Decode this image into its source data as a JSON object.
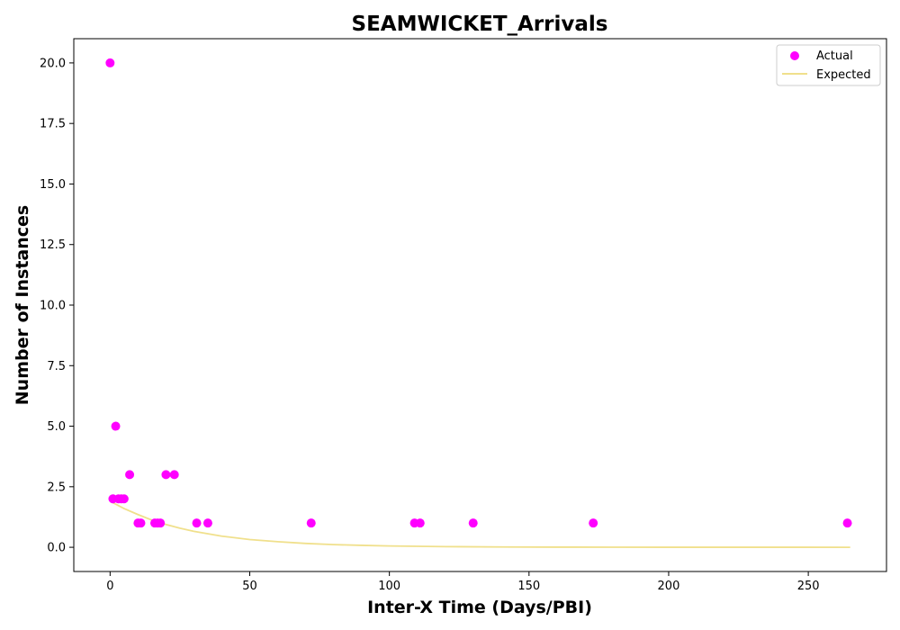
{
  "chart_data": {
    "type": "scatter",
    "title": "SEAMWICKET_Arrivals",
    "xlabel": "Inter-X Time (Days/PBI)",
    "ylabel": "Number of Instances",
    "xlim": [
      -13,
      278
    ],
    "ylim": [
      -1.0,
      21.0
    ],
    "xticks": [
      0,
      50,
      100,
      150,
      200,
      250
    ],
    "yticks": [
      0.0,
      2.5,
      5.0,
      7.5,
      10.0,
      12.5,
      15.0,
      17.5,
      20.0
    ],
    "xtick_labels": [
      "0",
      "50",
      "100",
      "150",
      "200",
      "250"
    ],
    "ytick_labels": [
      "0.0",
      "2.5",
      "5.0",
      "7.5",
      "10.0",
      "12.5",
      "15.0",
      "17.5",
      "20.0"
    ],
    "grid": false,
    "legend_position": "top-right",
    "series": [
      {
        "name": "Actual",
        "kind": "scatter",
        "color": "#ff00ff",
        "points": [
          [
            0,
            20
          ],
          [
            1,
            2
          ],
          [
            2,
            5
          ],
          [
            3,
            2
          ],
          [
            4,
            2
          ],
          [
            5,
            2
          ],
          [
            7,
            3
          ],
          [
            10,
            1
          ],
          [
            11,
            1
          ],
          [
            16,
            1
          ],
          [
            17,
            1
          ],
          [
            18,
            1
          ],
          [
            20,
            3
          ],
          [
            23,
            3
          ],
          [
            31,
            1
          ],
          [
            35,
            1
          ],
          [
            72,
            1
          ],
          [
            109,
            1
          ],
          [
            111,
            1
          ],
          [
            130,
            1
          ],
          [
            173,
            1
          ],
          [
            264,
            1
          ]
        ]
      },
      {
        "name": "Expected",
        "kind": "line",
        "color": "#f0e08c",
        "points": [
          [
            0,
            1.9
          ],
          [
            5,
            1.6
          ],
          [
            10,
            1.35
          ],
          [
            15,
            1.12
          ],
          [
            20,
            0.94
          ],
          [
            25,
            0.79
          ],
          [
            30,
            0.66
          ],
          [
            40,
            0.46
          ],
          [
            50,
            0.32
          ],
          [
            60,
            0.23
          ],
          [
            70,
            0.16
          ],
          [
            80,
            0.11
          ],
          [
            90,
            0.08
          ],
          [
            100,
            0.055
          ],
          [
            120,
            0.027
          ],
          [
            140,
            0.013
          ],
          [
            160,
            0.006
          ],
          [
            180,
            0.003
          ],
          [
            200,
            0.0015
          ],
          [
            230,
            0.0005
          ],
          [
            265,
            0.0001
          ]
        ]
      }
    ]
  }
}
